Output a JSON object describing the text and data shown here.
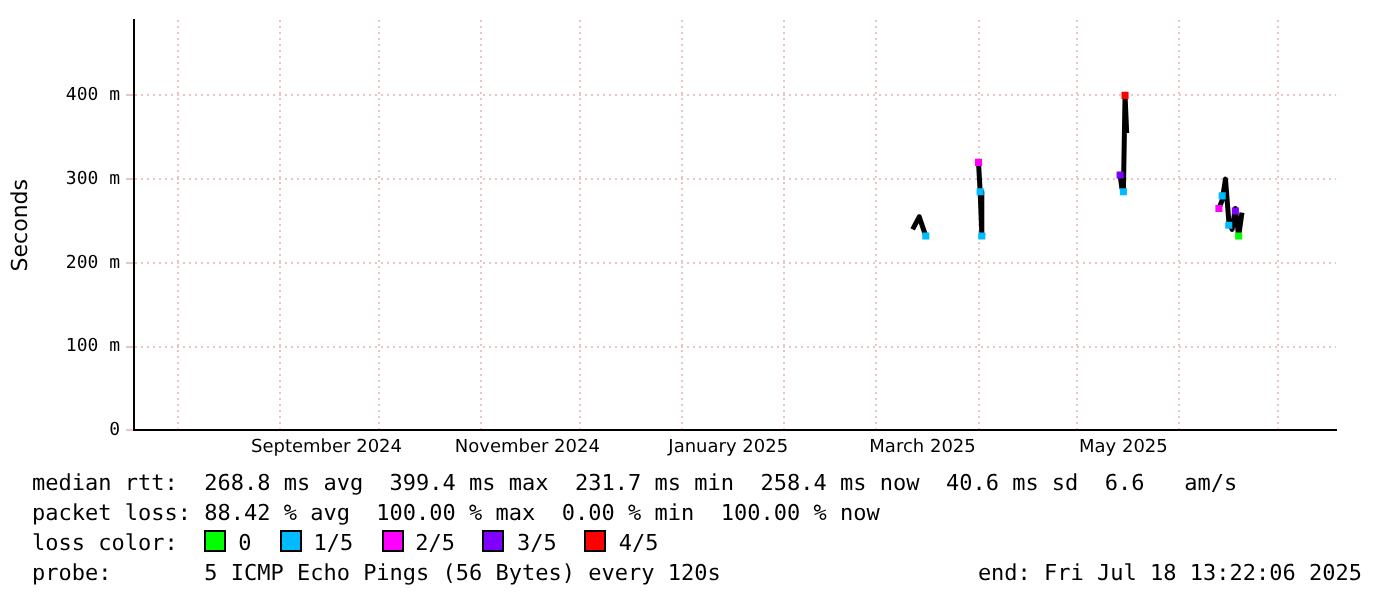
{
  "chart_data": {
    "type": "line",
    "ylabel": "Seconds",
    "legend_title": "loss color:",
    "legend": "bottom",
    "grid": true,
    "marker": "square",
    "xlim": [
      "2024-07-18T13:22",
      "2025-07-18T13:22"
    ],
    "xticks": [
      {
        "value": "2024-08-01",
        "label": null
      },
      {
        "value": "2024-09-01",
        "label": null
      },
      {
        "value": "2024-10-01",
        "label": null
      },
      {
        "value": "2024-11-01",
        "label": null
      },
      {
        "value": "2024-12-01",
        "label": null
      },
      {
        "value": "2025-01-01",
        "label": null
      },
      {
        "value": "2025-02-01",
        "label": null
      },
      {
        "value": "2025-03-01",
        "label": null
      },
      {
        "value": "2025-04-01",
        "label": null
      },
      {
        "value": "2025-05-01",
        "label": null
      },
      {
        "value": "2025-06-01",
        "label": null
      },
      {
        "value": "2025-07-01",
        "label": null
      },
      {
        "value": "2024-09-15",
        "label": "September 2024"
      },
      {
        "value": "2024-11-15",
        "label": "November 2024"
      },
      {
        "value": "2025-01-15",
        "label": "January 2025"
      },
      {
        "value": "2025-03-15",
        "label": "March 2025"
      },
      {
        "value": "2025-05-15",
        "label": "May 2025"
      }
    ],
    "ylim": [
      0,
      490
    ],
    "yticks": [
      0,
      {
        "value": 100,
        "label": "100 m"
      },
      {
        "value": 200,
        "label": "200 m"
      },
      {
        "value": 300,
        "label": "300 m"
      },
      {
        "value": 400,
        "label": "400 m"
      }
    ],
    "series": [
      {
        "color": "#000000",
        "marker": "none",
        "x": [
          "2025-03-12T00:00",
          "2025-03-14T00:00",
          "2025-03-16T00:00",
          "2025-03-20T00:00",
          "2025-04-01T00:00",
          "2025-04-01T12:00",
          "2025-04-02T00:00",
          "2025-04-02T12:00",
          "2025-04-20T00:00",
          "2025-05-14T00:00",
          "2025-05-14T12:00",
          "2025-05-15T00:00",
          "2025-05-15T12:00",
          "2025-05-16T00:00",
          "2025-06-01T00:00",
          "2025-06-13T00:00",
          "2025-06-14T00:00",
          "2025-06-15T00:00",
          "2025-06-16T00:00",
          "2025-06-17T00:00",
          "2025-06-18T00:00",
          "2025-06-19T00:00",
          "2025-06-20T00:00"
        ],
        "values": [
          240,
          255,
          232,
          null,
          320,
          285,
          235,
          232,
          null,
          305,
          290,
          285,
          400,
          355,
          null,
          265,
          275,
          300,
          250,
          240,
          265,
          232,
          260
        ]
      },
      {
        "type": "scatter",
        "name": "0",
        "color": "#00ff00",
        "x": [
          "2025-06-19T00:00"
        ],
        "values": [
          232
        ]
      },
      {
        "type": "scatter",
        "name": "1/5",
        "color": "#00bbff",
        "x": [
          "2025-03-16T00:00",
          "2025-04-02T00:00",
          "2025-04-01T12:00",
          "2025-05-15T00:00",
          "2025-06-14T00:00",
          "2025-06-16T00:00"
        ],
        "values": [
          232,
          232,
          285,
          285,
          280,
          245
        ]
      },
      {
        "type": "scatter",
        "name": "2/5",
        "color": "#ff00ff",
        "x": [
          "2025-04-01T00:00",
          "2025-06-13T00:00"
        ],
        "values": [
          320,
          265
        ]
      },
      {
        "type": "scatter",
        "name": "3/5",
        "color": "#7f00ff",
        "x": [
          "2025-05-14T00:00",
          "2025-06-18T00:00"
        ],
        "values": [
          305,
          262
        ]
      },
      {
        "type": "scatter",
        "name": "4/5",
        "color": "#ff0000",
        "x": [
          "2025-05-15T12:00"
        ],
        "values": [
          400
        ]
      }
    ],
    "annotations": [
      "median rtt:  268.8 ms avg  399.4 ms max  231.7 ms min  258.4 ms now  40.6 ms sd  6.6   am/s",
      "packet loss: 88.42 % avg  100.00 % max  0.00 % min  100.00 % now",
      "probe:       5 ICMP Echo Pings (56 Bytes) every 120s",
      "end: Fri Jul 18 13:22:06 2025"
    ]
  }
}
